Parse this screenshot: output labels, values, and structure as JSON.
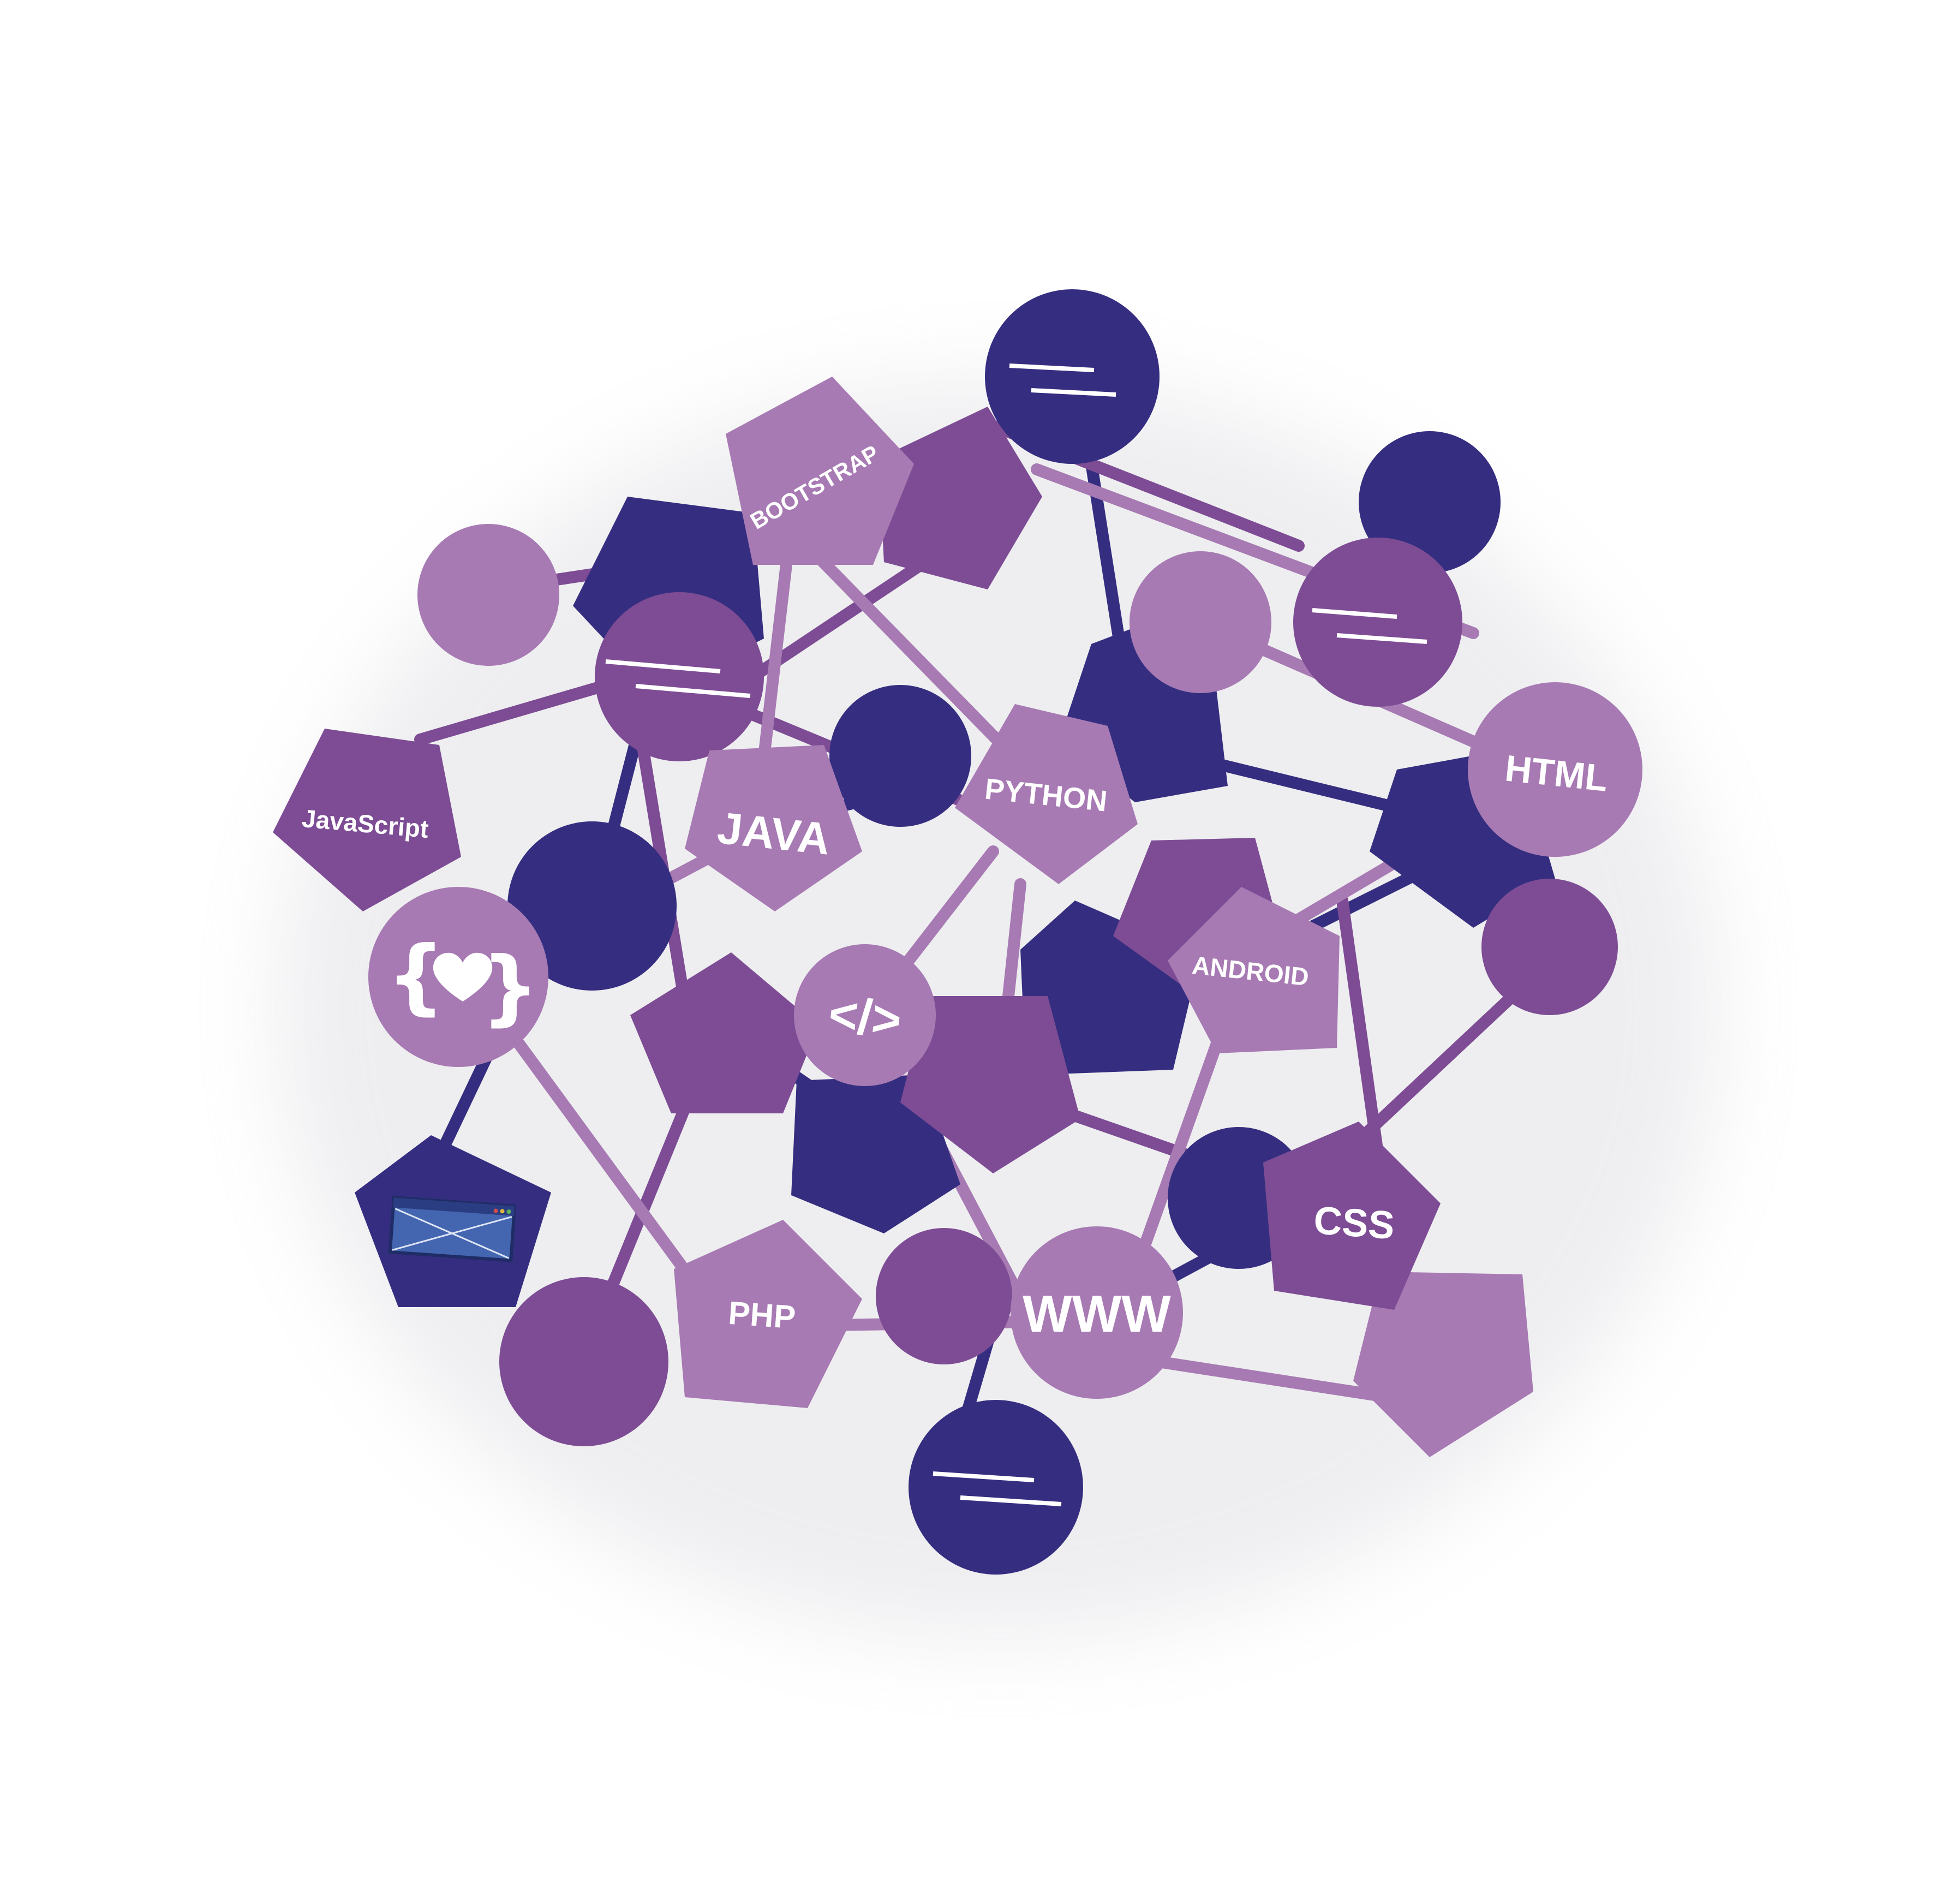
{
  "colors": {
    "background": "#ffffff",
    "navy": "#352e80",
    "plum": "#7d4c94",
    "lilac": "#a77ab3",
    "text": "#ffffff",
    "window_screen": "#4466b0"
  },
  "labels": {
    "bootstrap": "BOOTSTRAP",
    "javascript": "JavaScript",
    "java": "JAVA",
    "python": "PYTHON",
    "html": "HTML",
    "android": "ANDROID",
    "css": "CSS",
    "php": "PHP",
    "www": "WWW",
    "code_tag": "</>"
  },
  "icons": {
    "braces_heart": "braces-heart-icon",
    "browser_window": "browser-window-icon",
    "text_lines": "text-lines-icon"
  }
}
